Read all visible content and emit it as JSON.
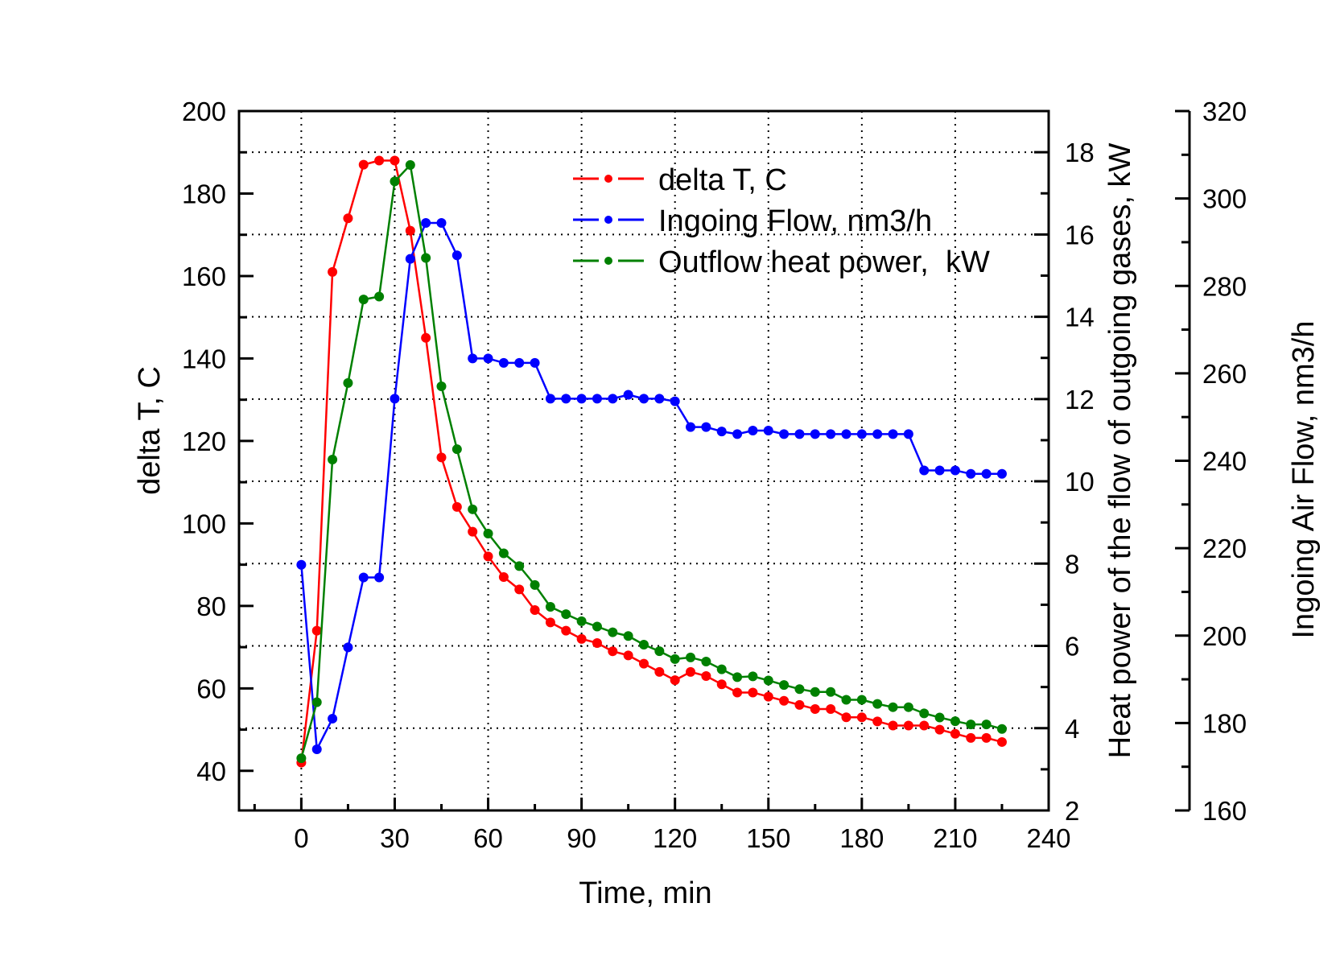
{
  "chart_data": {
    "type": "line",
    "title": "",
    "xlabel": "Time, min",
    "ylabel": "delta T, C",
    "ylabel_right": "Heat power of the flow of outgoing gases, kW",
    "ylabel_right2": "Ingoing Air Flow, nm3/h",
    "xlim": [
      -20,
      240
    ],
    "ylim": [
      30.4,
      200
    ],
    "ylim_right": [
      2,
      19
    ],
    "ylim_right2": [
      160,
      320
    ],
    "xticks": [
      "0",
      "30",
      "60",
      "90",
      "120",
      "150",
      "180",
      "210",
      "240"
    ],
    "yticks": [
      "40",
      "60",
      "80",
      "100",
      "120",
      "140",
      "160",
      "180",
      "200"
    ],
    "yticks_right": [
      "2",
      "4",
      "6",
      "8",
      "10",
      "12",
      "14",
      "16",
      "18"
    ],
    "yticks_right2": [
      "160",
      "180",
      "200",
      "220",
      "240",
      "260",
      "280",
      "300",
      "320"
    ],
    "grid": true,
    "legend_position": "top-right",
    "x": [
      0,
      5,
      10,
      15,
      20,
      25,
      30,
      35,
      40,
      45,
      50,
      55,
      60,
      65,
      70,
      75,
      80,
      85,
      90,
      95,
      100,
      105,
      110,
      115,
      120,
      125,
      130,
      135,
      140,
      145,
      150,
      155,
      160,
      165,
      170,
      175,
      180,
      185,
      190,
      195,
      200,
      205,
      210,
      215,
      220,
      225
    ],
    "series": [
      {
        "name": "delta T, C",
        "axis": "left",
        "color": "#ff0000",
        "values": [
          42,
          74,
          161,
          174,
          187,
          188,
          188,
          171,
          145,
          116,
          104,
          98,
          92,
          87,
          84,
          79,
          76,
          74,
          72,
          71,
          69,
          68,
          66,
          64,
          62,
          64,
          63,
          61,
          59,
          59,
          58,
          57,
          56,
          55,
          55,
          53,
          53,
          52,
          51,
          51,
          51,
          50,
          49,
          48,
          48,
          47
        ]
      },
      {
        "name": "Ingoing Flow, nm3/h",
        "axis": "right2",
        "color": "#0000ff",
        "values": [
          216.2,
          174,
          181,
          197.3,
          213.3,
          213.3,
          254.2,
          286.2,
          294.4,
          294.4,
          287,
          263.4,
          263.4,
          262.4,
          262.4,
          262.4,
          254.2,
          254.2,
          254.2,
          254.2,
          254.2,
          255.1,
          254.2,
          254.2,
          253.6,
          247.7,
          247.7,
          246.7,
          246.1,
          246.9,
          246.9,
          246.1,
          246.1,
          246.1,
          246.1,
          246.1,
          246.1,
          246.1,
          246.1,
          246.1,
          237.8,
          237.8,
          237.8,
          237,
          237,
          237
        ]
      },
      {
        "name": "Outflow heat power,  kW",
        "axis": "right",
        "color": "#008000",
        "values": [
          3.27,
          4.63,
          10.53,
          12.39,
          14.42,
          14.49,
          17.29,
          17.69,
          15.43,
          12.31,
          10.78,
          9.32,
          8.73,
          8.25,
          7.94,
          7.48,
          6.95,
          6.77,
          6.6,
          6.47,
          6.33,
          6.24,
          6.03,
          5.87,
          5.68,
          5.72,
          5.62,
          5.43,
          5.24,
          5.26,
          5.16,
          5.05,
          4.95,
          4.88,
          4.88,
          4.69,
          4.69,
          4.59,
          4.51,
          4.51,
          4.36,
          4.26,
          4.17,
          4.09,
          4.09,
          3.98
        ]
      }
    ]
  }
}
